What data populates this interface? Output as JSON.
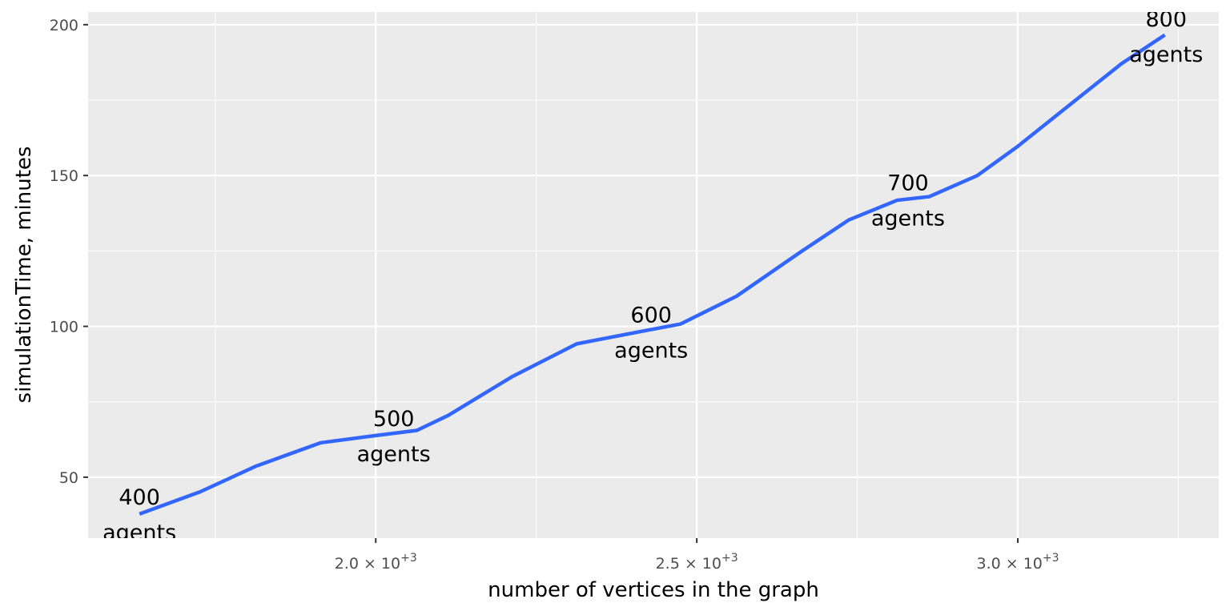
{
  "chart_data": {
    "type": "line",
    "x_label": "number of vertices in the graph",
    "y_label": "simulationTime, minutes",
    "series": [
      {
        "color": "#3366ff",
        "x": [
          1632,
          1727,
          1814,
          1914,
          2000,
          2064,
          2113,
          2213,
          2313,
          2413,
          2475,
          2562,
          2662,
          2737,
          2812,
          2862,
          2937,
          3000,
          3086,
          3161,
          3229
        ],
        "values": [
          37.8,
          45.2,
          53.7,
          61.4,
          63.8,
          65.5,
          70.5,
          83.4,
          94.2,
          98.3,
          100.8,
          110,
          124.7,
          135.3,
          141.8,
          143,
          150,
          159.7,
          174.3,
          187,
          196.6
        ]
      }
    ],
    "annotations": [
      {
        "x": 1632,
        "y": 37.8,
        "lines": [
          "400",
          "agents"
        ]
      },
      {
        "x": 2028,
        "y": 63.8,
        "lines": [
          "500",
          "agents"
        ]
      },
      {
        "x": 2429,
        "y": 98.1,
        "lines": [
          "600",
          "agents"
        ]
      },
      {
        "x": 2829,
        "y": 141.9,
        "lines": [
          "700",
          "agents"
        ]
      },
      {
        "x": 3231,
        "y": 196.3,
        "lines": [
          "800",
          "agents"
        ]
      }
    ],
    "xlim": [
      1552,
      3313
    ],
    "ylim": [
      29.8,
      204.2
    ],
    "xticks": [
      {
        "value": 2000,
        "label": "2.0 × 10",
        "exponent": "+3"
      },
      {
        "value": 2500,
        "label": "2.5 × 10",
        "exponent": "+3"
      },
      {
        "value": 3000,
        "label": "3.0 × 10",
        "exponent": "+3"
      }
    ],
    "x_minor_ticks": [
      1750,
      2250,
      2750,
      3250
    ],
    "yticks": [
      50,
      100,
      150,
      200
    ],
    "y_minor_ticks": [
      75,
      125,
      175
    ],
    "grid": true
  }
}
